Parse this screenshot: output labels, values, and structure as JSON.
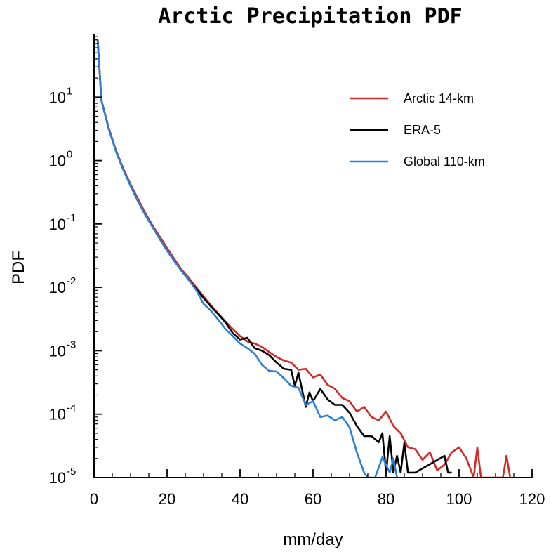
{
  "chart_data": {
    "type": "line",
    "title": "Arctic Precipitation PDF",
    "xlabel": "mm/day",
    "ylabel": "PDF",
    "xlim": [
      0,
      120
    ],
    "ylim": [
      1e-05,
      100
    ],
    "yscale": "log",
    "grid": false,
    "legend_position": "top-right",
    "x_ticks": [
      {
        "value": 0,
        "label": "0"
      },
      {
        "value": 20,
        "label": "20"
      },
      {
        "value": 40,
        "label": "40"
      },
      {
        "value": 60,
        "label": "60"
      },
      {
        "value": 80,
        "label": "80"
      },
      {
        "value": 100,
        "label": "100"
      },
      {
        "value": 120,
        "label": "120"
      }
    ],
    "y_ticks": [
      {
        "value": 10,
        "base": "10",
        "exp": "1"
      },
      {
        "value": 1,
        "base": "10",
        "exp": "0"
      },
      {
        "value": 0.1,
        "base": "10",
        "exp": "-1"
      },
      {
        "value": 0.01,
        "base": "10",
        "exp": "-2"
      },
      {
        "value": 0.001,
        "base": "10",
        "exp": "-3"
      },
      {
        "value": 0.0001,
        "base": "10",
        "exp": "-4"
      },
      {
        "value": 1e-05,
        "base": "10",
        "exp": "-5"
      }
    ],
    "series": [
      {
        "name": "Arctic 14-km",
        "color": "#d42a2a",
        "points": [
          [
            1,
            80
          ],
          [
            2,
            9
          ],
          [
            4,
            3.3
          ],
          [
            6,
            1.45
          ],
          [
            8,
            0.75
          ],
          [
            10,
            0.42
          ],
          [
            12,
            0.25
          ],
          [
            14,
            0.15
          ],
          [
            16,
            0.095
          ],
          [
            18,
            0.063
          ],
          [
            20,
            0.042
          ],
          [
            22,
            0.028
          ],
          [
            24,
            0.019
          ],
          [
            26,
            0.014
          ],
          [
            28,
            0.01
          ],
          [
            30,
            0.0072
          ],
          [
            32,
            0.0052
          ],
          [
            34,
            0.0039
          ],
          [
            36,
            0.0029
          ],
          [
            38,
            0.0022
          ],
          [
            40,
            0.0017
          ],
          [
            42,
            0.0014
          ],
          [
            44,
            0.0013
          ],
          [
            46,
            0.00115
          ],
          [
            48,
            0.00095
          ],
          [
            50,
            0.0008
          ],
          [
            52,
            0.0007
          ],
          [
            54,
            0.00065
          ],
          [
            56,
            0.0005
          ],
          [
            58,
            0.00052
          ],
          [
            60,
            0.00038
          ],
          [
            62,
            0.00042
          ],
          [
            64,
            0.00029
          ],
          [
            66,
            0.00025
          ],
          [
            68,
            0.00018
          ],
          [
            70,
            0.00016
          ],
          [
            72,
            0.00011
          ],
          [
            74,
            0.00013
          ],
          [
            76,
            9e-05
          ],
          [
            78,
            8e-05
          ],
          [
            80,
            0.00011
          ],
          [
            82,
            6.5e-05
          ],
          [
            84,
            5e-05
          ],
          [
            86,
            3e-05
          ],
          [
            88,
            2.8e-05
          ],
          [
            90,
            1.9e-05
          ],
          [
            92,
            2.5e-05
          ],
          [
            94,
            1.3e-05
          ],
          [
            96,
            1.6e-05
          ],
          [
            98,
            2.5e-05
          ],
          [
            100,
            3e-05
          ],
          [
            102,
            2e-05
          ],
          [
            104,
            1e-05
          ],
          [
            105,
            3e-05
          ],
          [
            106,
            1e-05
          ],
          [
            108,
            1e-05
          ],
          [
            110,
            1e-05
          ],
          [
            112,
            1e-05
          ],
          [
            113,
            2.2e-05
          ],
          [
            114,
            1e-05
          ]
        ]
      },
      {
        "name": "ERA-5",
        "color": "#000000",
        "points": [
          [
            1,
            80
          ],
          [
            2,
            9
          ],
          [
            4,
            3.2
          ],
          [
            6,
            1.4
          ],
          [
            8,
            0.72
          ],
          [
            10,
            0.4
          ],
          [
            12,
            0.23
          ],
          [
            14,
            0.14
          ],
          [
            16,
            0.09
          ],
          [
            18,
            0.058
          ],
          [
            20,
            0.038
          ],
          [
            22,
            0.026
          ],
          [
            24,
            0.018
          ],
          [
            26,
            0.013
          ],
          [
            28,
            0.0095
          ],
          [
            30,
            0.0068
          ],
          [
            32,
            0.005
          ],
          [
            34,
            0.0038
          ],
          [
            36,
            0.0028
          ],
          [
            38,
            0.0019
          ],
          [
            40,
            0.0015
          ],
          [
            42,
            0.0016
          ],
          [
            44,
            0.0011
          ],
          [
            46,
            0.001
          ],
          [
            48,
            0.00085
          ],
          [
            50,
            0.00065
          ],
          [
            52,
            0.00052
          ],
          [
            54,
            0.0005
          ],
          [
            55,
            0.00028
          ],
          [
            56,
            0.00045
          ],
          [
            58,
            0.00013
          ],
          [
            59,
            0.00022
          ],
          [
            60,
            0.00016
          ],
          [
            62,
            0.00025
          ],
          [
            64,
            0.00017
          ],
          [
            66,
            0.00014
          ],
          [
            68,
            0.00014
          ],
          [
            70,
            0.000105
          ],
          [
            72,
            6.5e-05
          ],
          [
            74,
            4.5e-05
          ],
          [
            76,
            4.5e-05
          ],
          [
            78,
            3.6e-05
          ],
          [
            79,
            5e-05
          ],
          [
            80,
            1.2e-05
          ],
          [
            81,
            4.5e-05
          ],
          [
            82,
            1.2e-05
          ],
          [
            83,
            2.2e-05
          ],
          [
            84,
            1.2e-05
          ],
          [
            85,
            3.5e-05
          ],
          [
            86,
            1.2e-05
          ],
          [
            88,
            1.2e-05
          ],
          [
            96,
            2.2e-05
          ],
          [
            97,
            1.2e-05
          ],
          [
            98,
            1.2e-05
          ]
        ]
      },
      {
        "name": "Global 110-km",
        "color": "#2b7fd4",
        "points": [
          [
            1,
            80
          ],
          [
            2,
            9
          ],
          [
            4,
            3.2
          ],
          [
            6,
            1.4
          ],
          [
            8,
            0.72
          ],
          [
            10,
            0.4
          ],
          [
            12,
            0.23
          ],
          [
            14,
            0.14
          ],
          [
            16,
            0.09
          ],
          [
            18,
            0.058
          ],
          [
            20,
            0.038
          ],
          [
            22,
            0.026
          ],
          [
            24,
            0.018
          ],
          [
            26,
            0.013
          ],
          [
            28,
            0.009
          ],
          [
            30,
            0.0055
          ],
          [
            32,
            0.0043
          ],
          [
            34,
            0.0031
          ],
          [
            36,
            0.0022
          ],
          [
            38,
            0.0017
          ],
          [
            40,
            0.0013
          ],
          [
            42,
            0.0011
          ],
          [
            44,
            0.0009
          ],
          [
            46,
            0.0006
          ],
          [
            48,
            0.00048
          ],
          [
            50,
            0.00047
          ],
          [
            52,
            0.00037
          ],
          [
            54,
            0.00028
          ],
          [
            56,
            0.00026
          ],
          [
            58,
            0.00014
          ],
          [
            60,
            0.00016
          ],
          [
            62,
            9e-05
          ],
          [
            64,
            9.5e-05
          ],
          [
            66,
            8e-05
          ],
          [
            68,
            9e-05
          ],
          [
            70,
            6.2e-05
          ],
          [
            72,
            2.5e-05
          ],
          [
            74,
            1.2e-05
          ],
          [
            75,
            1e-05
          ],
          [
            77,
            1e-05
          ],
          [
            79,
            2.1e-05
          ],
          [
            81,
            1.2e-05
          ],
          [
            82,
            2e-05
          ],
          [
            83,
            1e-05
          ]
        ]
      }
    ]
  }
}
